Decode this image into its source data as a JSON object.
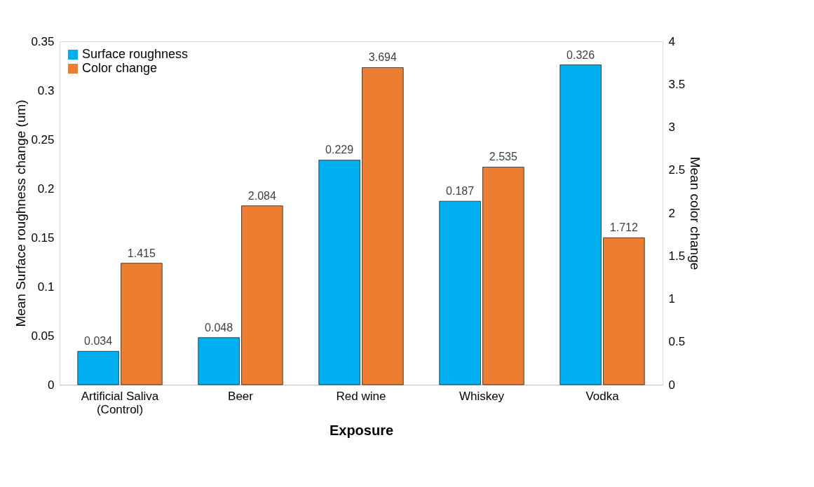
{
  "chart_data": {
    "type": "bar",
    "categories": [
      "Artificial Saliva\n(Control)",
      "Beer",
      "Red wine",
      "Whiskey",
      "Vodka"
    ],
    "series": [
      {
        "name": "Surface roughness",
        "color": "#00b0f0",
        "values": [
          0.034,
          0.048,
          0.229,
          0.187,
          0.326
        ]
      },
      {
        "name": "Color change",
        "color": "#ed7d31",
        "axis": "y2",
        "values": [
          1.415,
          2.084,
          3.694,
          2.535,
          1.712
        ]
      }
    ],
    "xlabel": "Exposure",
    "ylabel": "Mean Surface roughness change (um)",
    "y2label": "Mean color change",
    "ylim": [
      0,
      0.35
    ],
    "yticks": [
      0,
      0.05,
      0.1,
      0.15,
      0.2,
      0.25,
      0.3,
      0.35
    ],
    "y2lim": [
      0,
      4
    ],
    "y2ticks": [
      0,
      0.5,
      1,
      1.5,
      2,
      2.5,
      3,
      3.5,
      4
    ],
    "data_labels": true,
    "legend": "top left",
    "grid": false
  }
}
